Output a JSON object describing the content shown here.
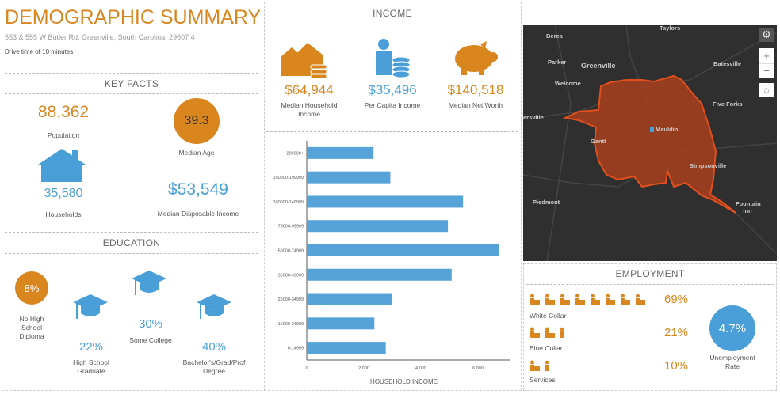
{
  "header": {
    "title": "DEMOGRAPHIC SUMMARY",
    "address": "553 & 555 W Butler Rd, Greenville, South Carolina, 29607 4",
    "drive_time": "Drive time of 10 minutes"
  },
  "key_facts": {
    "title": "KEY FACTS",
    "population": {
      "value": "88,362",
      "label": "Population"
    },
    "median_age": {
      "value": "39.3",
      "label": "Median Age"
    },
    "households": {
      "value": "35,580",
      "label": "Households"
    },
    "disposable_income": {
      "value": "$53,549",
      "label": "Median Disposable Income"
    }
  },
  "education": {
    "title": "EDUCATION",
    "items": [
      {
        "value": "8%",
        "label": "No High School Diploma"
      },
      {
        "value": "22%",
        "label": "High School Graduate"
      },
      {
        "value": "30%",
        "label": "Some College"
      },
      {
        "value": "40%",
        "label": "Bachelor's/Grad/Prof Degree"
      }
    ]
  },
  "income": {
    "title": "INCOME",
    "items": [
      {
        "value": "$64,944",
        "label": "Median Household Income"
      },
      {
        "value": "$35,496",
        "label": "Per Capita Income"
      },
      {
        "value": "$140,518",
        "label": "Median Net Worth"
      }
    ]
  },
  "chart_data": {
    "type": "bar",
    "orientation": "horizontal",
    "xlabel": "HOUSEHOLD INCOME",
    "xlim": [
      0,
      7000
    ],
    "xticks": [
      "0",
      "2,000",
      "4,000",
      "6,000"
    ],
    "grid": false,
    "color": "#56a3da",
    "categories": [
      "200000+",
      "150000-199999",
      "100000-149999",
      "75000-99999",
      "50000-74999",
      "35000-49999",
      "25000-34999",
      "15000-24999",
      "0-14999"
    ],
    "values": [
      2340,
      2930,
      5480,
      4950,
      6750,
      5080,
      2980,
      2370,
      2770
    ]
  },
  "map": {
    "labels": [
      "Berea",
      "Taylors",
      "Parker",
      "Greenville",
      "Batesville",
      "Welcome",
      "Five Forks",
      "ersville",
      "Mauldin",
      "Gantt",
      "Simpsonville",
      "Piedmont",
      "Fountain Inn"
    ],
    "zoom_in": "+",
    "zoom_out": "−"
  },
  "employment": {
    "title": "EMPLOYMENT",
    "rows": [
      {
        "label": "White Collar",
        "value": "69%",
        "icons": 8
      },
      {
        "label": "Blue Collar",
        "value": "21%",
        "icons": 3
      },
      {
        "label": "Services",
        "value": "10%",
        "icons": 2
      }
    ],
    "unemployment": {
      "value": "4.7%",
      "label": "Unemployment Rate"
    }
  },
  "colors": {
    "orange": "#d9861f",
    "blue": "#4a9fd8",
    "map_bg": "#2f2f2f",
    "polygon": "#c8401a"
  }
}
